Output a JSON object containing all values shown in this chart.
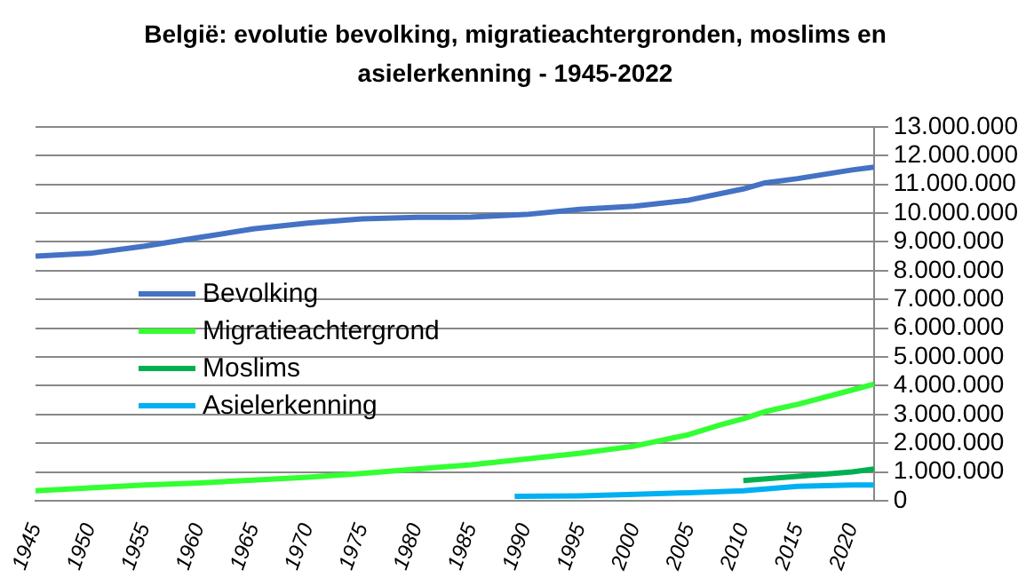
{
  "chart_data": {
    "type": "line",
    "title": "België: evolutie bevolking, migratieachtergronden, moslims en asielerkenning - 1945-2022",
    "series": [
      {
        "name": "Bevolking",
        "color": "#4472c4",
        "x": [
          1945,
          1950,
          1955,
          1960,
          1965,
          1970,
          1975,
          1980,
          1985,
          1990,
          1995,
          2000,
          2005,
          2010,
          2012,
          2015,
          2020,
          2022
        ],
        "values": [
          8500000,
          8600000,
          8850000,
          9150000,
          9450000,
          9650000,
          9800000,
          9850000,
          9860000,
          9950000,
          10130000,
          10240000,
          10450000,
          10840000,
          11050000,
          11200000,
          11500000,
          11600000
        ]
      },
      {
        "name": "Migratieachtergrond",
        "color": "#33ff33",
        "x": [
          1945,
          1950,
          1955,
          1960,
          1965,
          1970,
          1975,
          1980,
          1985,
          1990,
          1995,
          2000,
          2005,
          2008,
          2010,
          2012,
          2015,
          2020,
          2022
        ],
        "values": [
          350000,
          450000,
          550000,
          620000,
          720000,
          820000,
          950000,
          1100000,
          1250000,
          1450000,
          1650000,
          1900000,
          2300000,
          2650000,
          2850000,
          3100000,
          3350000,
          3850000,
          4050000
        ]
      },
      {
        "name": "Moslims",
        "color": "#00b050",
        "x": [
          2010,
          2015,
          2020,
          2022
        ],
        "values": [
          700000,
          850000,
          1000000,
          1100000
        ]
      },
      {
        "name": "Asielerkenning",
        "color": "#00b0f0",
        "x": [
          1989,
          1995,
          2000,
          2005,
          2010,
          2015,
          2020,
          2022
        ],
        "values": [
          150000,
          170000,
          220000,
          280000,
          350000,
          500000,
          550000,
          550000
        ]
      }
    ],
    "xlim": [
      1945,
      2022
    ],
    "xticks": [
      1945,
      1950,
      1955,
      1960,
      1965,
      1970,
      1975,
      1980,
      1985,
      1990,
      1995,
      2000,
      2005,
      2010,
      2015,
      2020
    ],
    "ylim": [
      0,
      13000000
    ],
    "yticks": [
      0,
      {
        "value": 1000000,
        "label": "1.000.000"
      },
      {
        "value": 2000000,
        "label": "2.000.000"
      },
      {
        "value": 3000000,
        "label": "3.000.000"
      },
      {
        "value": 4000000,
        "label": "4.000.000"
      },
      {
        "value": 5000000,
        "label": "5.000.000"
      },
      {
        "value": 6000000,
        "label": "6.000.000"
      },
      {
        "value": 7000000,
        "label": "7.000.000"
      },
      {
        "value": 8000000,
        "label": "8.000.000"
      },
      {
        "value": 9000000,
        "label": "9.000.000"
      },
      {
        "value": 10000000,
        "label": "10.000.000"
      },
      {
        "value": 11000000,
        "label": "11.000.000"
      },
      {
        "value": 12000000,
        "label": "12.000.000"
      },
      {
        "value": 13000000,
        "label": "13.000.000"
      }
    ],
    "grid": "y",
    "legend": "left",
    "marker": "none",
    "line_style": "solid"
  }
}
